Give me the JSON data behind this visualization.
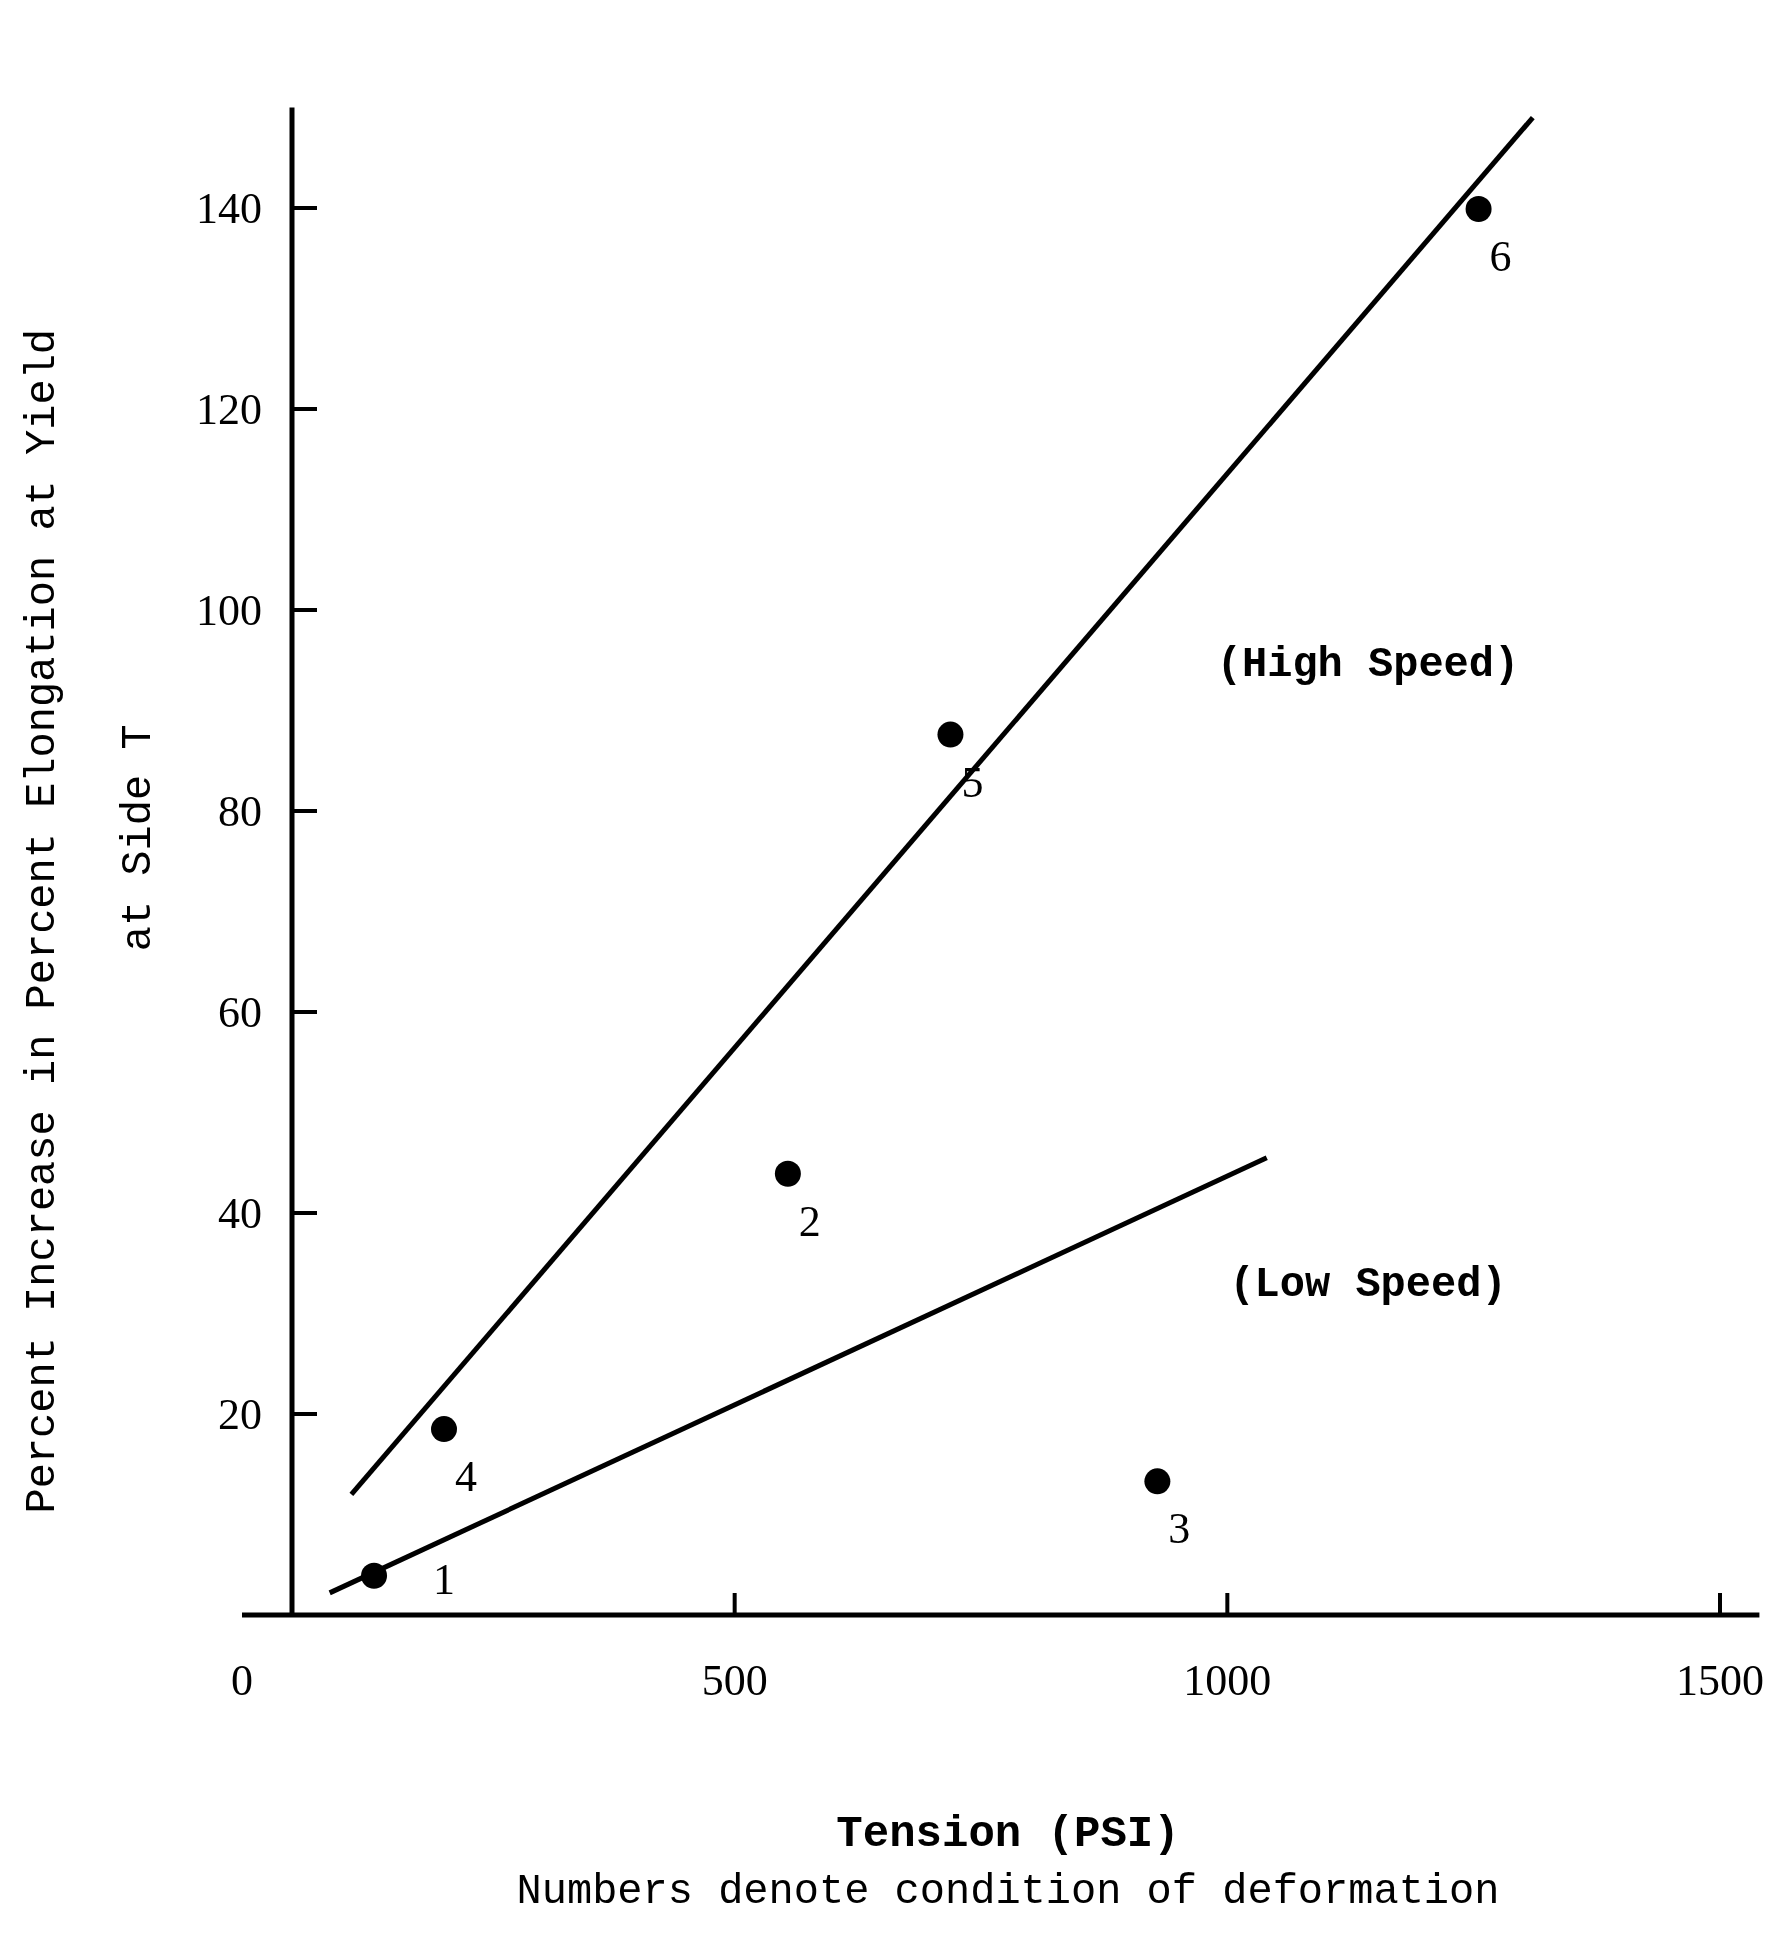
{
  "chart_data": {
    "type": "scatter",
    "xlabel": "Tension (PSI)",
    "ylabel": "Percent Increase in Percent Elongation at Yield\nat Side T",
    "xlim": [
      0,
      1540
    ],
    "ylim": [
      0,
      150
    ],
    "xticks": [
      0,
      500,
      1000,
      1500
    ],
    "yticks": [
      20,
      40,
      60,
      80,
      100,
      120,
      140
    ],
    "grid": false,
    "series": [
      {
        "marker": "circle",
        "color": "#000000",
        "x": [
          134,
          554,
          929,
          205,
          719,
          1255
        ],
        "values": [
          3.9,
          43.9,
          13.3,
          18.5,
          87.6,
          139.9
        ]
      },
      {
        "type": "line",
        "color": "#000000",
        "x": [
          111,
          1310
        ],
        "values": [
          12,
          149
        ]
      },
      {
        "type": "line",
        "color": "#000000",
        "x": [
          89,
          1040
        ],
        "values": [
          2.2,
          45.5
        ]
      }
    ],
    "annotations": [
      {
        "text": "1",
        "x": 134,
        "y": 3.9
      },
      {
        "text": "2",
        "x": 554,
        "y": 43.9
      },
      {
        "text": "3",
        "x": 929,
        "y": 13.3
      },
      {
        "text": "4",
        "x": 205,
        "y": 18.5
      },
      {
        "text": "5",
        "x": 719,
        "y": 87.6
      },
      {
        "text": "6",
        "x": 1255,
        "y": 139.9
      },
      "(High Speed)",
      "(Low Speed)",
      "Numbers denote condition of deformation"
    ]
  }
}
